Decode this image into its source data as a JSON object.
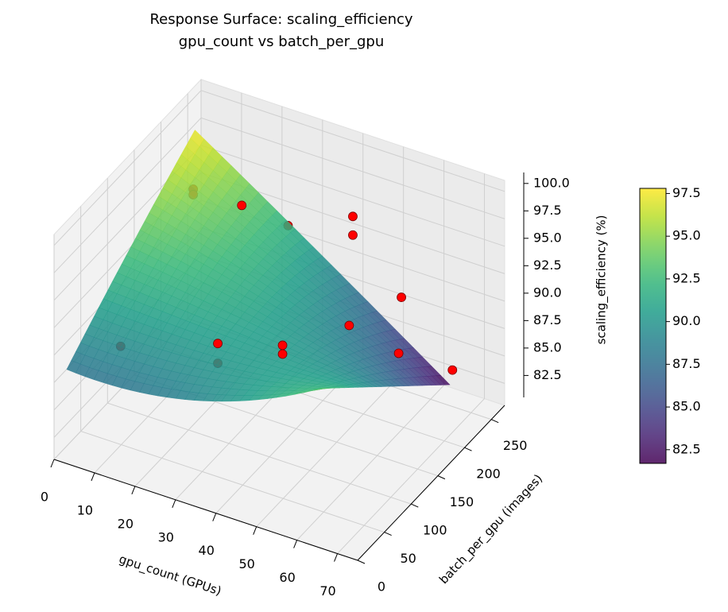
{
  "chart_data": {
    "type": "surface3d",
    "title": "Response Surface: scaling_efficiency",
    "subtitle": "gpu_count vs batch_per_gpu",
    "x_label": "gpu_count (GPUs)",
    "y_label": "batch_per_gpu (images)",
    "z_label": "scaling_efficiency (%)",
    "xlim": [
      0,
      75
    ],
    "ylim": [
      0,
      275
    ],
    "zlim": [
      80.5,
      101
    ],
    "xticks": [
      0,
      10,
      20,
      30,
      40,
      50,
      60,
      70
    ],
    "yticks": [
      0,
      50,
      100,
      150,
      200,
      250
    ],
    "zticks": [
      82.5,
      {
        "value": 85,
        "label": "85.0"
      },
      87.5,
      {
        "value": 90,
        "label": "90.0"
      },
      92.5,
      {
        "value": 95,
        "label": "95.0"
      },
      97.5,
      {
        "value": 100,
        "label": "100.0"
      }
    ],
    "surface": {
      "x": [
        1,
        32,
        64
      ],
      "y": [
        16,
        136,
        256
      ],
      "z": [
        [
          88,
          93,
          97.5
        ],
        [
          89,
          91,
          90
        ],
        [
          94,
          88,
          82
        ]
      ],
      "colormap": "viridis",
      "opacity": 0.85
    },
    "points": {
      "color": "#ff0000",
      "x": [
        4,
        4,
        40,
        40,
        52,
        64,
        72,
        8,
        32,
        32,
        48,
        48,
        56,
        16,
        24
      ],
      "y": [
        230,
        230,
        256,
        256,
        256,
        160,
        200,
        64,
        64,
        64,
        64,
        64,
        128,
        230,
        256
      ],
      "z": [
        93.8,
        93.3,
        94.4,
        92.7,
        88.5,
        89.8,
        87.2,
        88.5,
        91.7,
        89.9,
        93.5,
        92.7,
        93.0,
        93.8,
        91.6
      ]
    },
    "colorbar": {
      "lim": [
        81.7,
        97.8
      ],
      "ticks": [
        82.5,
        {
          "value": 85,
          "label": "85.0"
        },
        87.5,
        {
          "value": 90,
          "label": "90.0"
        },
        92.5,
        {
          "value": 95,
          "label": "95.0"
        },
        97.5
      ]
    },
    "grid": true
  }
}
